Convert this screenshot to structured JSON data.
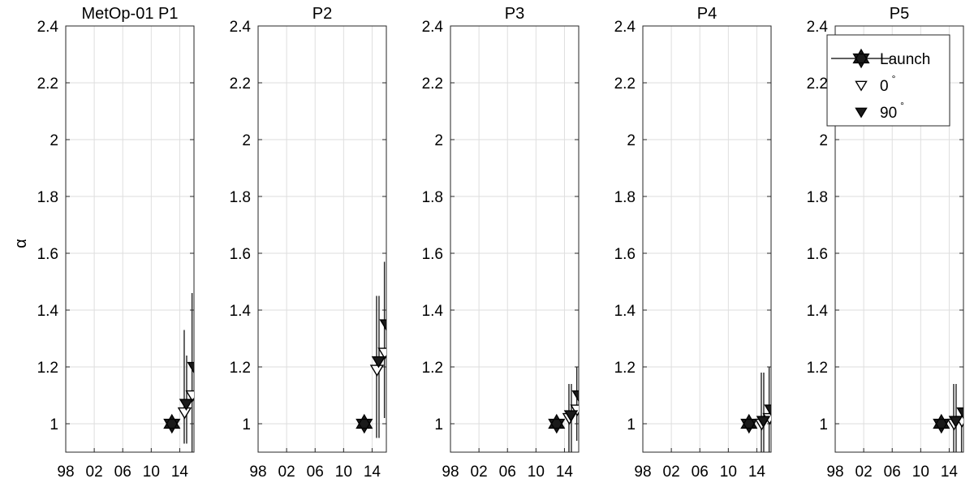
{
  "chart_data": {
    "type": "scatter",
    "ylabel": "α",
    "ylim": [
      0.9,
      2.4
    ],
    "xlim": [
      1998,
      2016
    ],
    "yticks": [
      1,
      1.2,
      1.4,
      1.6,
      1.8,
      2,
      2.2,
      2.4
    ],
    "ytick_labels": [
      "1",
      "1.2",
      "1.4",
      "1.6",
      "1.8",
      "2",
      "2.2",
      "2.4"
    ],
    "xticks": [
      1998,
      2002,
      2006,
      2010,
      2014
    ],
    "xtick_labels": [
      "98",
      "02",
      "06",
      "10",
      "14"
    ],
    "grid": true,
    "legend": {
      "placement": "top-right of last panel",
      "entries": [
        {
          "label": "Launch",
          "marker": "hexagram",
          "fill": "#1a1a1a"
        },
        {
          "label": "0",
          "superscript": "°",
          "marker": "triangle-down",
          "fill": "#ffffff"
        },
        {
          "label": "90",
          "superscript": "°",
          "marker": "triangle-down",
          "fill": "#1a1a1a"
        }
      ]
    },
    "panels": [
      {
        "title": "MetOp-01 P1",
        "series": [
          {
            "name": "Launch",
            "points": [
              {
                "x": 2012.9,
                "y": 1.0
              }
            ]
          },
          {
            "name": "0",
            "points": [
              {
                "x": 2014.8,
                "y": 1.04,
                "yerr": [
                  0.93,
                  1.33
                ]
              },
              {
                "x": 2015.9,
                "y": 1.1,
                "yerr": [
                  0.9,
                  1.46
                ]
              }
            ]
          },
          {
            "name": "90",
            "points": [
              {
                "x": 2014.8,
                "y": 1.07,
                "yerr": [
                  0.93,
                  1.24
                ]
              },
              {
                "x": 2015.9,
                "y": 1.2,
                "yerr": [
                  0.9,
                  1.47
                ]
              }
            ]
          }
        ]
      },
      {
        "title": "P2",
        "series": [
          {
            "name": "Launch",
            "points": [
              {
                "x": 2012.9,
                "y": 1.0
              }
            ]
          },
          {
            "name": "0",
            "points": [
              {
                "x": 2014.8,
                "y": 1.19,
                "yerr": [
                  0.95,
                  1.45
                ]
              },
              {
                "x": 2015.9,
                "y": 1.25,
                "yerr": [
                  1.02,
                  1.57
                ]
              }
            ]
          },
          {
            "name": "90",
            "points": [
              {
                "x": 2014.8,
                "y": 1.22,
                "yerr": [
                  0.95,
                  1.45
                ]
              },
              {
                "x": 2015.9,
                "y": 1.35,
                "yerr": [
                  1.02,
                  1.58
                ]
              }
            ]
          }
        ]
      },
      {
        "title": "P3",
        "series": [
          {
            "name": "Launch",
            "points": [
              {
                "x": 2012.9,
                "y": 1.0
              }
            ]
          },
          {
            "name": "0",
            "points": [
              {
                "x": 2014.8,
                "y": 1.02,
                "yerr": [
                  0.9,
                  1.14
                ]
              },
              {
                "x": 2015.9,
                "y": 1.05,
                "yerr": [
                  0.94,
                  1.2
                ]
              }
            ]
          },
          {
            "name": "90",
            "points": [
              {
                "x": 2014.8,
                "y": 1.03,
                "yerr": [
                  0.9,
                  1.14
                ]
              },
              {
                "x": 2015.9,
                "y": 1.1,
                "yerr": [
                  0.94,
                  1.21
                ]
              }
            ]
          }
        ]
      },
      {
        "title": "P4",
        "series": [
          {
            "name": "Launch",
            "points": [
              {
                "x": 2012.9,
                "y": 1.0
              }
            ]
          },
          {
            "name": "0",
            "points": [
              {
                "x": 2014.8,
                "y": 1.0,
                "yerr": [
                  0.9,
                  1.18
                ]
              },
              {
                "x": 2015.9,
                "y": 1.02,
                "yerr": [
                  0.9,
                  1.2
                ]
              }
            ]
          },
          {
            "name": "90",
            "points": [
              {
                "x": 2014.8,
                "y": 1.01,
                "yerr": [
                  0.9,
                  1.18
                ]
              },
              {
                "x": 2015.9,
                "y": 1.05,
                "yerr": [
                  0.9,
                  1.21
                ]
              }
            ]
          }
        ]
      },
      {
        "title": "P5",
        "series": [
          {
            "name": "Launch",
            "points": [
              {
                "x": 2012.9,
                "y": 1.0
              }
            ]
          },
          {
            "name": "0",
            "points": [
              {
                "x": 2014.8,
                "y": 1.0,
                "yerr": [
                  0.9,
                  1.14
                ]
              },
              {
                "x": 2015.9,
                "y": 1.01,
                "yerr": [
                  0.9,
                  1.04
                ]
              }
            ]
          },
          {
            "name": "90",
            "points": [
              {
                "x": 2014.8,
                "y": 1.01,
                "yerr": [
                  0.9,
                  1.14
                ]
              },
              {
                "x": 2015.9,
                "y": 1.04,
                "yerr": [
                  0.9,
                  1.06
                ]
              }
            ]
          }
        ]
      }
    ]
  }
}
